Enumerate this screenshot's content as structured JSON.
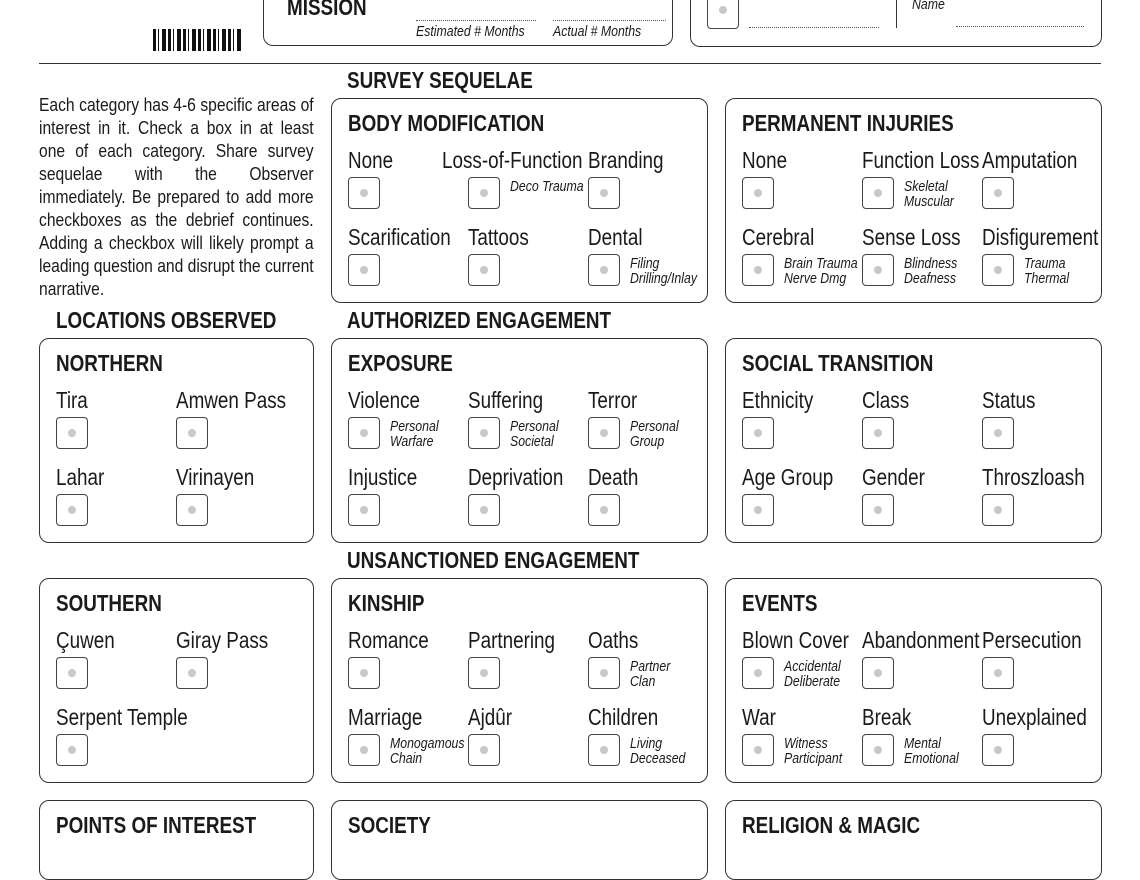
{
  "header": {
    "mission_label": "MISSION",
    "estimated_label": "Estimated # Months",
    "actual_label": "Actual # Months",
    "name_label": "Name"
  },
  "sections": {
    "survey_sequelae": "SURVEY SEQUELAE",
    "locations_observed": "LOCATIONS OBSERVED",
    "authorized_engagement": "AUTHORIZED ENGAGEMENT",
    "unsanctioned_engagement": "UNSANCTIONED ENGAGEMENT"
  },
  "intro": "Each category has 4-6 specific areas of interest in it. Check a box in at least one of each category. Share survey sequelae with the Observer immediately. Be prepared to add more checkboxes as the debrief continues. Adding a checkbox will likely prompt a leading question and disrupt the current narrative.",
  "panels": [
    {
      "title": "BODY MODIFICATION",
      "items": [
        {
          "label": "None"
        },
        {
          "label": "Loss-of-Function",
          "sub": [
            "Deco Trauma"
          ]
        },
        {
          "label": "Branding"
        },
        {
          "label": "Scarification"
        },
        {
          "label": "Tattoos"
        },
        {
          "label": "Dental",
          "sub": [
            "Filing",
            "Drilling/Inlay"
          ]
        }
      ]
    },
    {
      "title": "PERMANENT INJURIES",
      "items": [
        {
          "label": "None"
        },
        {
          "label": "Function Loss",
          "sub": [
            "Skeletal",
            "Muscular"
          ]
        },
        {
          "label": "Amputation"
        },
        {
          "label": "Cerebral",
          "sub": [
            "Brain Trauma",
            "Nerve Dmg"
          ]
        },
        {
          "label": "Sense Loss",
          "sub": [
            "Blindness",
            "Deafness"
          ]
        },
        {
          "label": "Disfigurement",
          "sub": [
            "Trauma",
            "Thermal"
          ]
        }
      ]
    },
    {
      "title": "NORTHERN",
      "items": [
        {
          "label": "Tira"
        },
        {
          "label": "Amwen Pass"
        },
        {
          "label": "Lahar"
        },
        {
          "label": "Virinayen"
        }
      ]
    },
    {
      "title": "EXPOSURE",
      "items": [
        {
          "label": "Violence",
          "sub": [
            "Personal",
            "Warfare"
          ]
        },
        {
          "label": "Suffering",
          "sub": [
            "Personal",
            "Societal"
          ]
        },
        {
          "label": "Terror",
          "sub": [
            "Personal",
            "Group"
          ]
        },
        {
          "label": "Injustice"
        },
        {
          "label": "Deprivation"
        },
        {
          "label": "Death"
        }
      ]
    },
    {
      "title": "SOCIAL TRANSITION",
      "items": [
        {
          "label": "Ethnicity"
        },
        {
          "label": "Class"
        },
        {
          "label": "Status"
        },
        {
          "label": "Age Group"
        },
        {
          "label": "Gender"
        },
        {
          "label": "Throszloash"
        }
      ]
    },
    {
      "title": "SOUTHERN",
      "items": [
        {
          "label": "Çuwen"
        },
        {
          "label": "Giray Pass"
        },
        {
          "label": "Serpent Temple"
        }
      ]
    },
    {
      "title": "KINSHIP",
      "items": [
        {
          "label": "Romance"
        },
        {
          "label": "Partnering"
        },
        {
          "label": "Oaths",
          "sub": [
            "Partner",
            "Clan"
          ]
        },
        {
          "label": "Marriage",
          "sub": [
            "Monogamous",
            "Chain"
          ]
        },
        {
          "label": "Ajdûr"
        },
        {
          "label": "Children",
          "sub": [
            "Living",
            "Deceased"
          ]
        }
      ]
    },
    {
      "title": "EVENTS",
      "items": [
        {
          "label": "Blown Cover",
          "sub": [
            "Accidental",
            "Deliberate"
          ]
        },
        {
          "label": "Abandonment"
        },
        {
          "label": "Persecution"
        },
        {
          "label": "War",
          "sub": [
            "Witness",
            "Participant"
          ]
        },
        {
          "label": "Break",
          "sub": [
            "Mental",
            "Emotional"
          ]
        },
        {
          "label": "Unexplained"
        }
      ]
    },
    {
      "title": "POINTS OF INTEREST",
      "items": []
    },
    {
      "title": "SOCIETY",
      "items": []
    },
    {
      "title": "RELIGION & MAGIC",
      "items": []
    }
  ]
}
